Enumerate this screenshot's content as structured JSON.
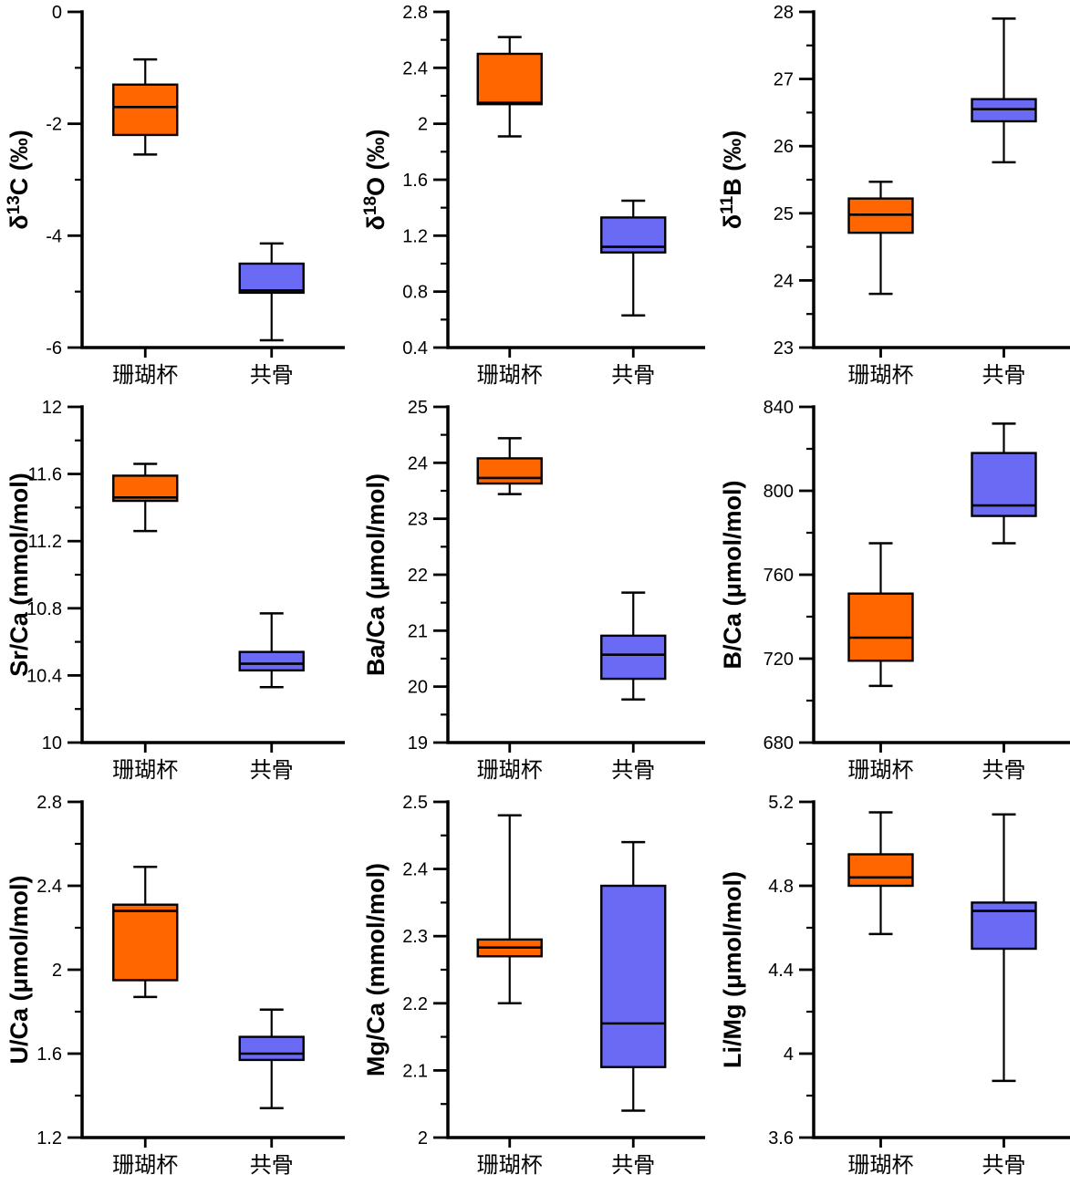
{
  "figure": {
    "description": "3x3 grid of box-and-whisker plots comparing coral calyx and coenosteum geochemistry",
    "background": "#ffffff",
    "axis_color": "#000000",
    "text_color": "#000000"
  },
  "chart_data": {
    "type": "box",
    "grid": "off",
    "legend": "none",
    "categories": [
      "珊瑚杯",
      "共骨"
    ],
    "series_colors": [
      "#FF6600",
      "#6A6AF5"
    ],
    "box_edge_color": "#000000",
    "median_color": "#000000",
    "panels": [
      {
        "id": "d13C",
        "ylabel_text": "δ13C (‰)",
        "ylabel_parts": [
          {
            "t": "δ"
          },
          {
            "t": "13",
            "sup": true
          },
          {
            "t": "C (‰)"
          }
        ],
        "ylim": [
          -6,
          0
        ],
        "yminor_step": 1,
        "yticks": [
          {
            "v": 0,
            "label": "0"
          },
          {
            "v": -2,
            "label": "-2"
          },
          {
            "v": -4,
            "label": "-4"
          },
          {
            "v": -6,
            "label": "-6"
          }
        ],
        "series": [
          {
            "category": "珊瑚杯",
            "whisker_low": -2.55,
            "q1": -2.2,
            "median": -1.7,
            "q3": -1.3,
            "whisker_high": -0.85
          },
          {
            "category": "共骨",
            "whisker_low": -5.87,
            "q1": -5.02,
            "median": -4.98,
            "q3": -4.5,
            "whisker_high": -4.14
          }
        ]
      },
      {
        "id": "d18O",
        "ylabel_text": "δ18O (‰)",
        "ylabel_parts": [
          {
            "t": "δ"
          },
          {
            "t": "18",
            "sup": true
          },
          {
            "t": "O (‰)"
          }
        ],
        "ylim": [
          0.4,
          2.8
        ],
        "yminor_step": 0.2,
        "yticks": [
          {
            "v": 2.8,
            "label": "2.8"
          },
          {
            "v": 2.4,
            "label": "2.4"
          },
          {
            "v": 2.0,
            "label": "2"
          },
          {
            "v": 1.6,
            "label": "1.6"
          },
          {
            "v": 1.2,
            "label": "1.2"
          },
          {
            "v": 0.8,
            "label": "0.8"
          },
          {
            "v": 0.4,
            "label": "0.4"
          }
        ],
        "series": [
          {
            "category": "珊瑚杯",
            "whisker_low": 1.91,
            "q1": 2.14,
            "median": 2.15,
            "q3": 2.5,
            "whisker_high": 2.62
          },
          {
            "category": "共骨",
            "whisker_low": 0.63,
            "q1": 1.08,
            "median": 1.12,
            "q3": 1.33,
            "whisker_high": 1.45
          }
        ]
      },
      {
        "id": "d11B",
        "ylabel_text": "δ11B (‰)",
        "ylabel_parts": [
          {
            "t": "δ"
          },
          {
            "t": "11",
            "sup": true
          },
          {
            "t": "B (‰)"
          }
        ],
        "ylim": [
          23,
          28
        ],
        "yminor_step": 0.5,
        "yticks": [
          {
            "v": 28,
            "label": "28"
          },
          {
            "v": 27,
            "label": "27"
          },
          {
            "v": 26,
            "label": "26"
          },
          {
            "v": 25,
            "label": "25"
          },
          {
            "v": 24,
            "label": "24"
          },
          {
            "v": 23,
            "label": "23"
          }
        ],
        "series": [
          {
            "category": "珊瑚杯",
            "whisker_low": 23.8,
            "q1": 24.71,
            "median": 24.98,
            "q3": 25.22,
            "whisker_high": 25.47
          },
          {
            "category": "共骨",
            "whisker_low": 25.76,
            "q1": 26.37,
            "median": 26.55,
            "q3": 26.7,
            "whisker_high": 27.9
          }
        ]
      },
      {
        "id": "SrCa",
        "ylabel_text": "Sr/Ca (mmol/mol)",
        "ylabel_parts": [
          {
            "t": "Sr/Ca (mmol/mol)"
          }
        ],
        "ylim": [
          10,
          12
        ],
        "yminor_step": 0.2,
        "yticks": [
          {
            "v": 12,
            "label": "12"
          },
          {
            "v": 11.6,
            "label": "11.6"
          },
          {
            "v": 11.2,
            "label": "11.2"
          },
          {
            "v": 10.8,
            "label": "10.8"
          },
          {
            "v": 10.4,
            "label": "10.4"
          },
          {
            "v": 10,
            "label": "10"
          }
        ],
        "series": [
          {
            "category": "珊瑚杯",
            "whisker_low": 11.26,
            "q1": 11.44,
            "median": 11.46,
            "q3": 11.59,
            "whisker_high": 11.66
          },
          {
            "category": "共骨",
            "whisker_low": 10.33,
            "q1": 10.43,
            "median": 10.47,
            "q3": 10.54,
            "whisker_high": 10.77
          }
        ]
      },
      {
        "id": "BaCa",
        "ylabel_text": "Ba/Ca (μmol/mol)",
        "ylabel_parts": [
          {
            "t": "Ba/Ca (μmol/mol)"
          }
        ],
        "ylim": [
          19,
          25
        ],
        "yminor_step": 0.5,
        "yticks": [
          {
            "v": 25,
            "label": "25"
          },
          {
            "v": 24,
            "label": "24"
          },
          {
            "v": 23,
            "label": "23"
          },
          {
            "v": 22,
            "label": "22"
          },
          {
            "v": 21,
            "label": "21"
          },
          {
            "v": 20,
            "label": "20"
          },
          {
            "v": 19,
            "label": "19"
          }
        ],
        "series": [
          {
            "category": "珊瑚杯",
            "whisker_low": 23.44,
            "q1": 23.63,
            "median": 23.73,
            "q3": 24.08,
            "whisker_high": 24.44
          },
          {
            "category": "共骨",
            "whisker_low": 19.77,
            "q1": 20.14,
            "median": 20.57,
            "q3": 20.91,
            "whisker_high": 21.68
          }
        ]
      },
      {
        "id": "BCa",
        "ylabel_text": "B/Ca (μmol/mol)",
        "ylabel_parts": [
          {
            "t": "B/Ca (μmol/mol)"
          }
        ],
        "ylim": [
          680,
          840
        ],
        "yminor_step": 20,
        "yticks": [
          {
            "v": 840,
            "label": "840"
          },
          {
            "v": 800,
            "label": "800"
          },
          {
            "v": 760,
            "label": "760"
          },
          {
            "v": 720,
            "label": "720"
          },
          {
            "v": 680,
            "label": "680"
          }
        ],
        "series": [
          {
            "category": "珊瑚杯",
            "whisker_low": 707,
            "q1": 719,
            "median": 730,
            "q3": 751,
            "whisker_high": 775
          },
          {
            "category": "共骨",
            "whisker_low": 775,
            "q1": 788,
            "median": 793,
            "q3": 818,
            "whisker_high": 832
          }
        ]
      },
      {
        "id": "UCa",
        "ylabel_text": "U/Ca (μmol/mol)",
        "ylabel_parts": [
          {
            "t": "U/Ca (μmol/mol)"
          }
        ],
        "ylim": [
          1.2,
          2.8
        ],
        "yminor_step": 0.2,
        "yticks": [
          {
            "v": 2.8,
            "label": "2.8"
          },
          {
            "v": 2.4,
            "label": "2.4"
          },
          {
            "v": 2.0,
            "label": "2"
          },
          {
            "v": 1.6,
            "label": "1.6"
          },
          {
            "v": 1.2,
            "label": "1.2"
          }
        ],
        "series": [
          {
            "category": "珊瑚杯",
            "whisker_low": 1.87,
            "q1": 1.95,
            "median": 2.28,
            "q3": 2.31,
            "whisker_high": 2.49
          },
          {
            "category": "共骨",
            "whisker_low": 1.34,
            "q1": 1.57,
            "median": 1.6,
            "q3": 1.68,
            "whisker_high": 1.81
          }
        ]
      },
      {
        "id": "MgCa",
        "ylabel_text": "Mg/Ca (mmol/mol)",
        "ylabel_parts": [
          {
            "t": "Mg/Ca (mmol/mol)"
          }
        ],
        "ylim": [
          2,
          2.5
        ],
        "yminor_step": 0.05,
        "yticks": [
          {
            "v": 2.5,
            "label": "2.5"
          },
          {
            "v": 2.4,
            "label": "2.4"
          },
          {
            "v": 2.3,
            "label": "2.3"
          },
          {
            "v": 2.2,
            "label": "2.2"
          },
          {
            "v": 2.1,
            "label": "2.1"
          },
          {
            "v": 2,
            "label": "2"
          }
        ],
        "series": [
          {
            "category": "珊瑚杯",
            "whisker_low": 2.2,
            "q1": 2.27,
            "median": 2.283,
            "q3": 2.295,
            "whisker_high": 2.48
          },
          {
            "category": "共骨",
            "whisker_low": 2.04,
            "q1": 2.105,
            "median": 2.17,
            "q3": 2.375,
            "whisker_high": 2.44
          }
        ]
      },
      {
        "id": "LiMg",
        "ylabel_text": "Li/Mg (μmol/mol)",
        "ylabel_parts": [
          {
            "t": "Li/Mg (μmol/mol)"
          }
        ],
        "ylim": [
          3.6,
          5.2
        ],
        "yminor_step": 0.2,
        "yticks": [
          {
            "v": 5.2,
            "label": "5.2"
          },
          {
            "v": 4.8,
            "label": "4.8"
          },
          {
            "v": 4.4,
            "label": "4.4"
          },
          {
            "v": 4.0,
            "label": "4"
          },
          {
            "v": 3.6,
            "label": "3.6"
          }
        ],
        "series": [
          {
            "category": "珊瑚杯",
            "whisker_low": 4.57,
            "q1": 4.8,
            "median": 4.84,
            "q3": 4.95,
            "whisker_high": 5.15
          },
          {
            "category": "共骨",
            "whisker_low": 3.87,
            "q1": 4.5,
            "median": 4.68,
            "q3": 4.72,
            "whisker_high": 5.14
          }
        ]
      }
    ]
  }
}
